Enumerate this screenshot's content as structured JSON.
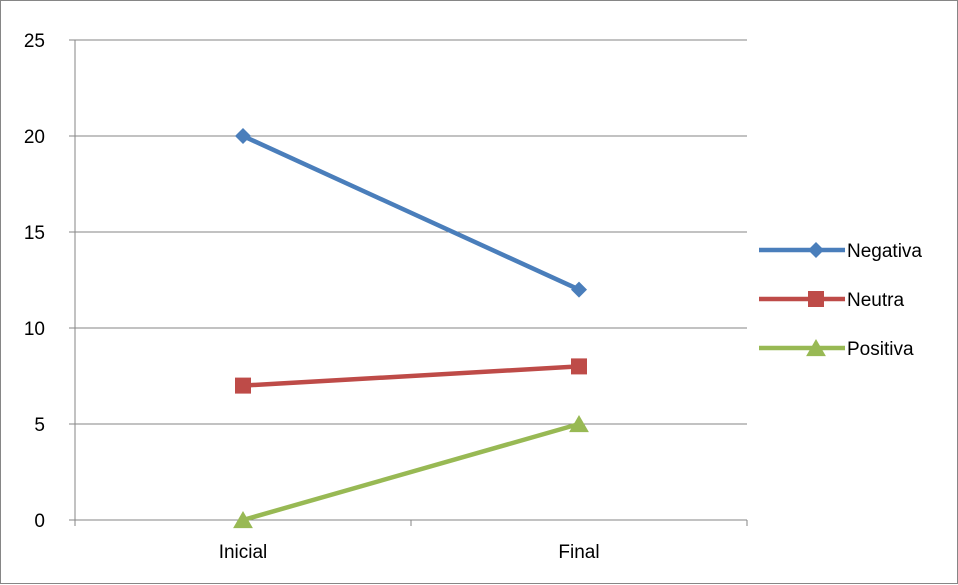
{
  "chart_data": {
    "type": "line",
    "title": "",
    "xlabel": "",
    "ylabel": "",
    "categories": [
      "Inicial",
      "Final"
    ],
    "ylim": [
      0,
      25
    ],
    "y_ticks": [
      0,
      5,
      10,
      15,
      20,
      25
    ],
    "grid": "horizontal",
    "legend_position": "right",
    "series": [
      {
        "name": "Negativa",
        "values": [
          20,
          12
        ],
        "color": "#4a7ebb",
        "marker": "diamond"
      },
      {
        "name": "Neutra",
        "values": [
          7,
          8
        ],
        "color": "#be4b48",
        "marker": "square"
      },
      {
        "name": "Positiva",
        "values": [
          0,
          5
        ],
        "color": "#98b954",
        "marker": "triangle"
      }
    ]
  }
}
